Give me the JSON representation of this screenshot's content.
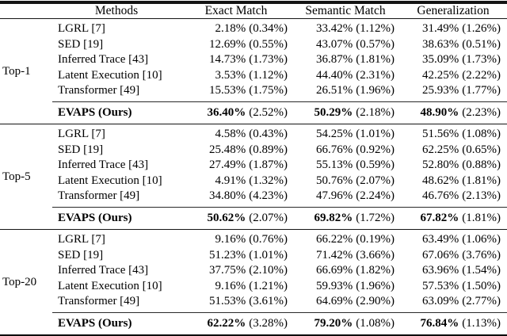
{
  "table": {
    "columns": [
      "Methods",
      "Exact Match",
      "Semantic Match",
      "Generalization"
    ],
    "groups": [
      {
        "label": "Top-1",
        "rows": [
          {
            "method": "LGRL [7]",
            "exact": "2.18%",
            "exact_sd": "(0.34%)",
            "semantic": "33.42%",
            "semantic_sd": "(1.12%)",
            "general": "31.49%",
            "general_sd": "(1.26%)"
          },
          {
            "method": "SED [19]",
            "exact": "12.69%",
            "exact_sd": "(0.55%)",
            "semantic": "43.07%",
            "semantic_sd": "(0.57%)",
            "general": "38.63%",
            "general_sd": "(0.51%)"
          },
          {
            "method": "Inferred Trace [43]",
            "exact": "14.73%",
            "exact_sd": "(1.73%)",
            "semantic": "36.87%",
            "semantic_sd": "(1.81%)",
            "general": "35.09%",
            "general_sd": "(1.73%)"
          },
          {
            "method": "Latent Execution [10]",
            "exact": "3.53%",
            "exact_sd": "(1.12%)",
            "semantic": "44.40%",
            "semantic_sd": "(2.31%)",
            "general": "42.25%",
            "general_sd": "(2.22%)"
          },
          {
            "method": "Transformer [49]",
            "exact": "15.53%",
            "exact_sd": "(1.75%)",
            "semantic": "26.51%",
            "semantic_sd": "(1.96%)",
            "general": "25.93%",
            "general_sd": "(1.77%)"
          }
        ],
        "best": {
          "method": "EVAPS (Ours)",
          "exact": "36.40%",
          "exact_sd": "(2.52%)",
          "semantic": "50.29%",
          "semantic_sd": "(2.18%)",
          "general": "48.90%",
          "general_sd": "(2.23%)"
        }
      },
      {
        "label": "Top-5",
        "rows": [
          {
            "method": "LGRL [7]",
            "exact": "4.58%",
            "exact_sd": "(0.43%)",
            "semantic": "54.25%",
            "semantic_sd": "(1.01%)",
            "general": "51.56%",
            "general_sd": "(1.08%)"
          },
          {
            "method": "SED [19]",
            "exact": "25.48%",
            "exact_sd": "(0.89%)",
            "semantic": "66.76%",
            "semantic_sd": "(0.92%)",
            "general": "62.25%",
            "general_sd": "(0.65%)"
          },
          {
            "method": "Inferred Trace [43]",
            "exact": "27.49%",
            "exact_sd": "(1.87%)",
            "semantic": "55.13%",
            "semantic_sd": "(0.59%)",
            "general": "52.80%",
            "general_sd": "(0.88%)"
          },
          {
            "method": "Latent Execution [10]",
            "exact": "4.91%",
            "exact_sd": "(1.32%)",
            "semantic": "50.76%",
            "semantic_sd": "(2.07%)",
            "general": "48.62%",
            "general_sd": "(1.81%)"
          },
          {
            "method": "Transformer [49]",
            "exact": "34.80%",
            "exact_sd": "(4.23%)",
            "semantic": "47.96%",
            "semantic_sd": "(2.24%)",
            "general": "46.76%",
            "general_sd": "(2.13%)"
          }
        ],
        "best": {
          "method": "EVAPS (Ours)",
          "exact": "50.62%",
          "exact_sd": "(2.07%)",
          "semantic": "69.82%",
          "semantic_sd": "(1.72%)",
          "general": "67.82%",
          "general_sd": "(1.81%)"
        }
      },
      {
        "label": "Top-20",
        "rows": [
          {
            "method": "LGRL [7]",
            "exact": "9.16%",
            "exact_sd": "(0.76%)",
            "semantic": "66.22%",
            "semantic_sd": "(0.19%)",
            "general": "63.49%",
            "general_sd": "(1.06%)"
          },
          {
            "method": "SED [19]",
            "exact": "51.23%",
            "exact_sd": "(1.01%)",
            "semantic": "71.42%",
            "semantic_sd": "(3.66%)",
            "general": "67.06%",
            "general_sd": "(3.76%)"
          },
          {
            "method": "Inferred Trace [43]",
            "exact": "37.75%",
            "exact_sd": "(2.10%)",
            "semantic": "66.69%",
            "semantic_sd": "(1.82%)",
            "general": "63.96%",
            "general_sd": "(1.54%)"
          },
          {
            "method": "Latent Execution [10]",
            "exact": "9.16%",
            "exact_sd": "(1.21%)",
            "semantic": "59.93%",
            "semantic_sd": "(1.96%)",
            "general": "57.53%",
            "general_sd": "(1.50%)"
          },
          {
            "method": "Transformer [49]",
            "exact": "51.53%",
            "exact_sd": "(3.61%)",
            "semantic": "64.69%",
            "semantic_sd": "(2.90%)",
            "general": "63.09%",
            "general_sd": "(2.77%)"
          }
        ],
        "best": {
          "method": "EVAPS (Ours)",
          "exact": "62.22%",
          "exact_sd": "(3.28%)",
          "semantic": "79.20%",
          "semantic_sd": "(1.08%)",
          "general": "76.84%",
          "general_sd": "(1.13%)"
        }
      }
    ]
  }
}
